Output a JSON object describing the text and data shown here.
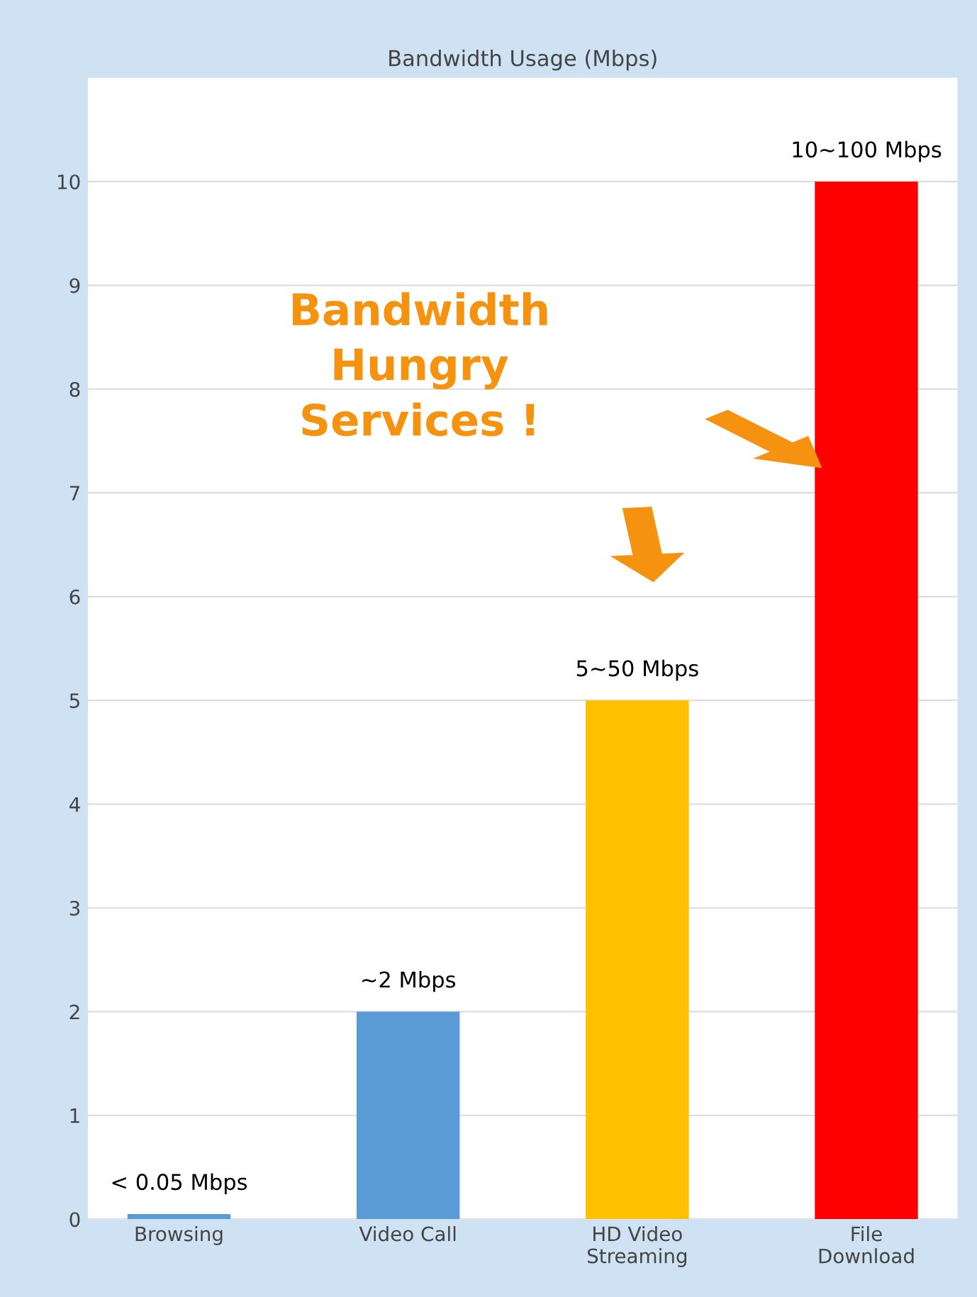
{
  "chart_data": {
    "type": "bar",
    "title": "Bandwidth Usage (Mbps)",
    "categories": [
      "Browsing",
      "Video Call",
      "HD Video\nStreaming",
      "File\nDownload"
    ],
    "values": [
      0.05,
      2,
      5,
      10
    ],
    "colors": [
      "#5b9bd5",
      "#5b9bd5",
      "#ffc000",
      "#ff0000"
    ],
    "value_labels": [
      "< 0.05 Mbps",
      "~2 Mbps",
      "5~50 Mbps",
      "10~100 Mbps"
    ],
    "ylim": [
      0,
      11
    ],
    "yticks": [
      0,
      1,
      2,
      3,
      4,
      5,
      6,
      7,
      8,
      9,
      10
    ],
    "grid": "y",
    "annotations": [
      "Bandwidth\nHungry\nServices !"
    ]
  }
}
